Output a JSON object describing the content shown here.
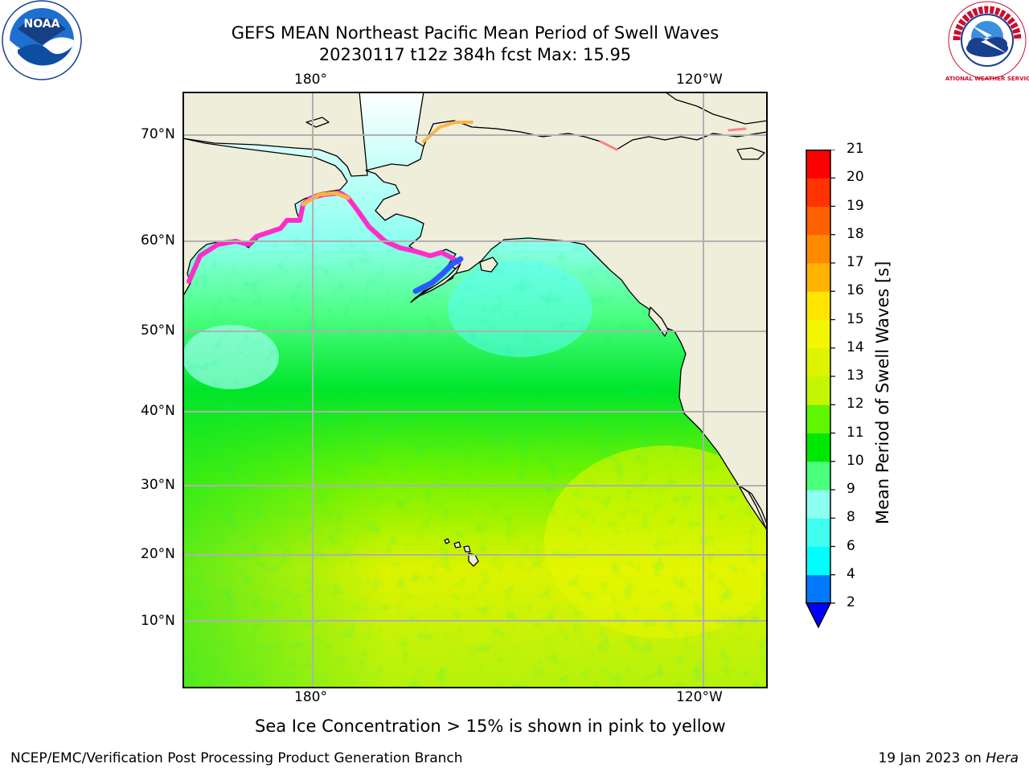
{
  "title_line1": "GEFS MEAN Northeast Pacific Mean Period of Swell Waves",
  "title_line2": "20230117 t12z 384h fcst   Max: 15.95",
  "map": {
    "lon_labels": [
      "180°",
      "120°W"
    ],
    "lat_labels": [
      "70°N",
      "60°N",
      "50°N",
      "40°N",
      "30°N",
      "20°N",
      "10°N"
    ],
    "land_color": "#efeedb",
    "ocean_colors": {
      "south": "#ddf300",
      "mid": "#00e52a",
      "north": "#8cfff0"
    }
  },
  "colorbar": {
    "label": "Mean Period of Swell Waves [s]",
    "ticks": [
      "2",
      "4",
      "6",
      "8",
      "9",
      "10",
      "11",
      "12",
      "13",
      "14",
      "15",
      "16",
      "17",
      "18",
      "19",
      "20",
      "21"
    ],
    "colors": [
      "#0078ff",
      "#00ffff",
      "#40fff0",
      "#8cfff0",
      "#49ff7b",
      "#00e800",
      "#60f500",
      "#c3f600",
      "#ddf300",
      "#f2f600",
      "#ffe500",
      "#ffb300",
      "#ff8a00",
      "#ff6000",
      "#ff3300",
      "#ff0000"
    ],
    "under_color": "#0000ff"
  },
  "caption": "Sea Ice Concentration > 15% is shown in pink to yellow",
  "footer_left": "NCEP/EMC/Verification Post Processing Product Generation Branch",
  "footer_date": "19 Jan 2023 on",
  "footer_machine": "Hera",
  "logos": {
    "noaa_text": "NOAA",
    "nws_text": "NATIONAL WEATHER SERVICE"
  }
}
